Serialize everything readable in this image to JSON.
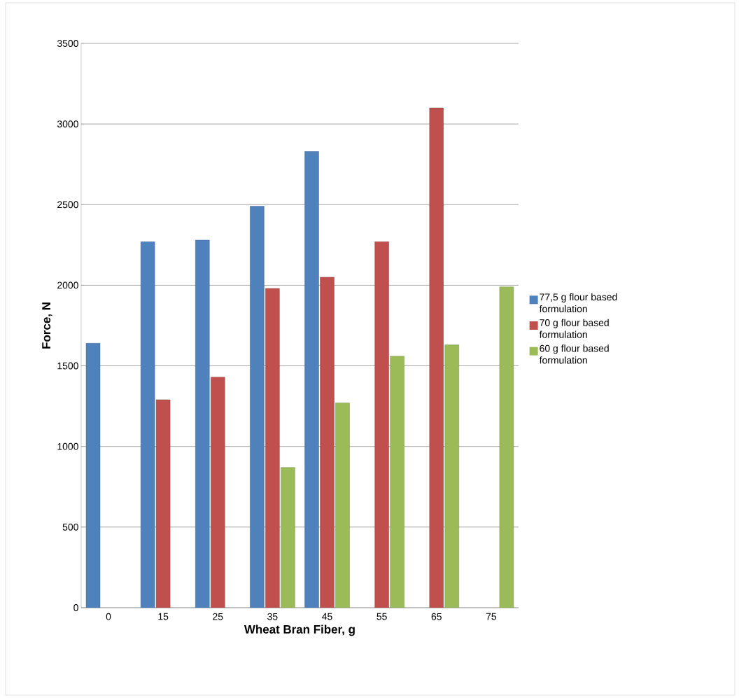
{
  "chart_data": {
    "type": "bar",
    "xlabel": "Wheat Bran Fiber, g",
    "ylabel": "Force, N",
    "categories": [
      "0",
      "15",
      "25",
      "35",
      "45",
      "55",
      "65",
      "75"
    ],
    "series": [
      {
        "name": "77,5 g flour based formulation",
        "color": "#4f81bd",
        "values": [
          1640,
          2270,
          2280,
          2490,
          2830,
          null,
          null,
          null
        ]
      },
      {
        "name": "70 g flour based formulation",
        "color": "#c0504d",
        "values": [
          null,
          1290,
          1430,
          1980,
          2050,
          2270,
          3100,
          null
        ]
      },
      {
        "name": "60 g flour based formulation",
        "color": "#9bbb59",
        "values": [
          null,
          null,
          null,
          870,
          1270,
          1560,
          1630,
          1990
        ]
      }
    ],
    "ylim": [
      0,
      3500
    ],
    "yticks": [
      0,
      500,
      1000,
      1500,
      2000,
      2500,
      3000,
      3500
    ],
    "grid": "y",
    "legend": "right"
  }
}
